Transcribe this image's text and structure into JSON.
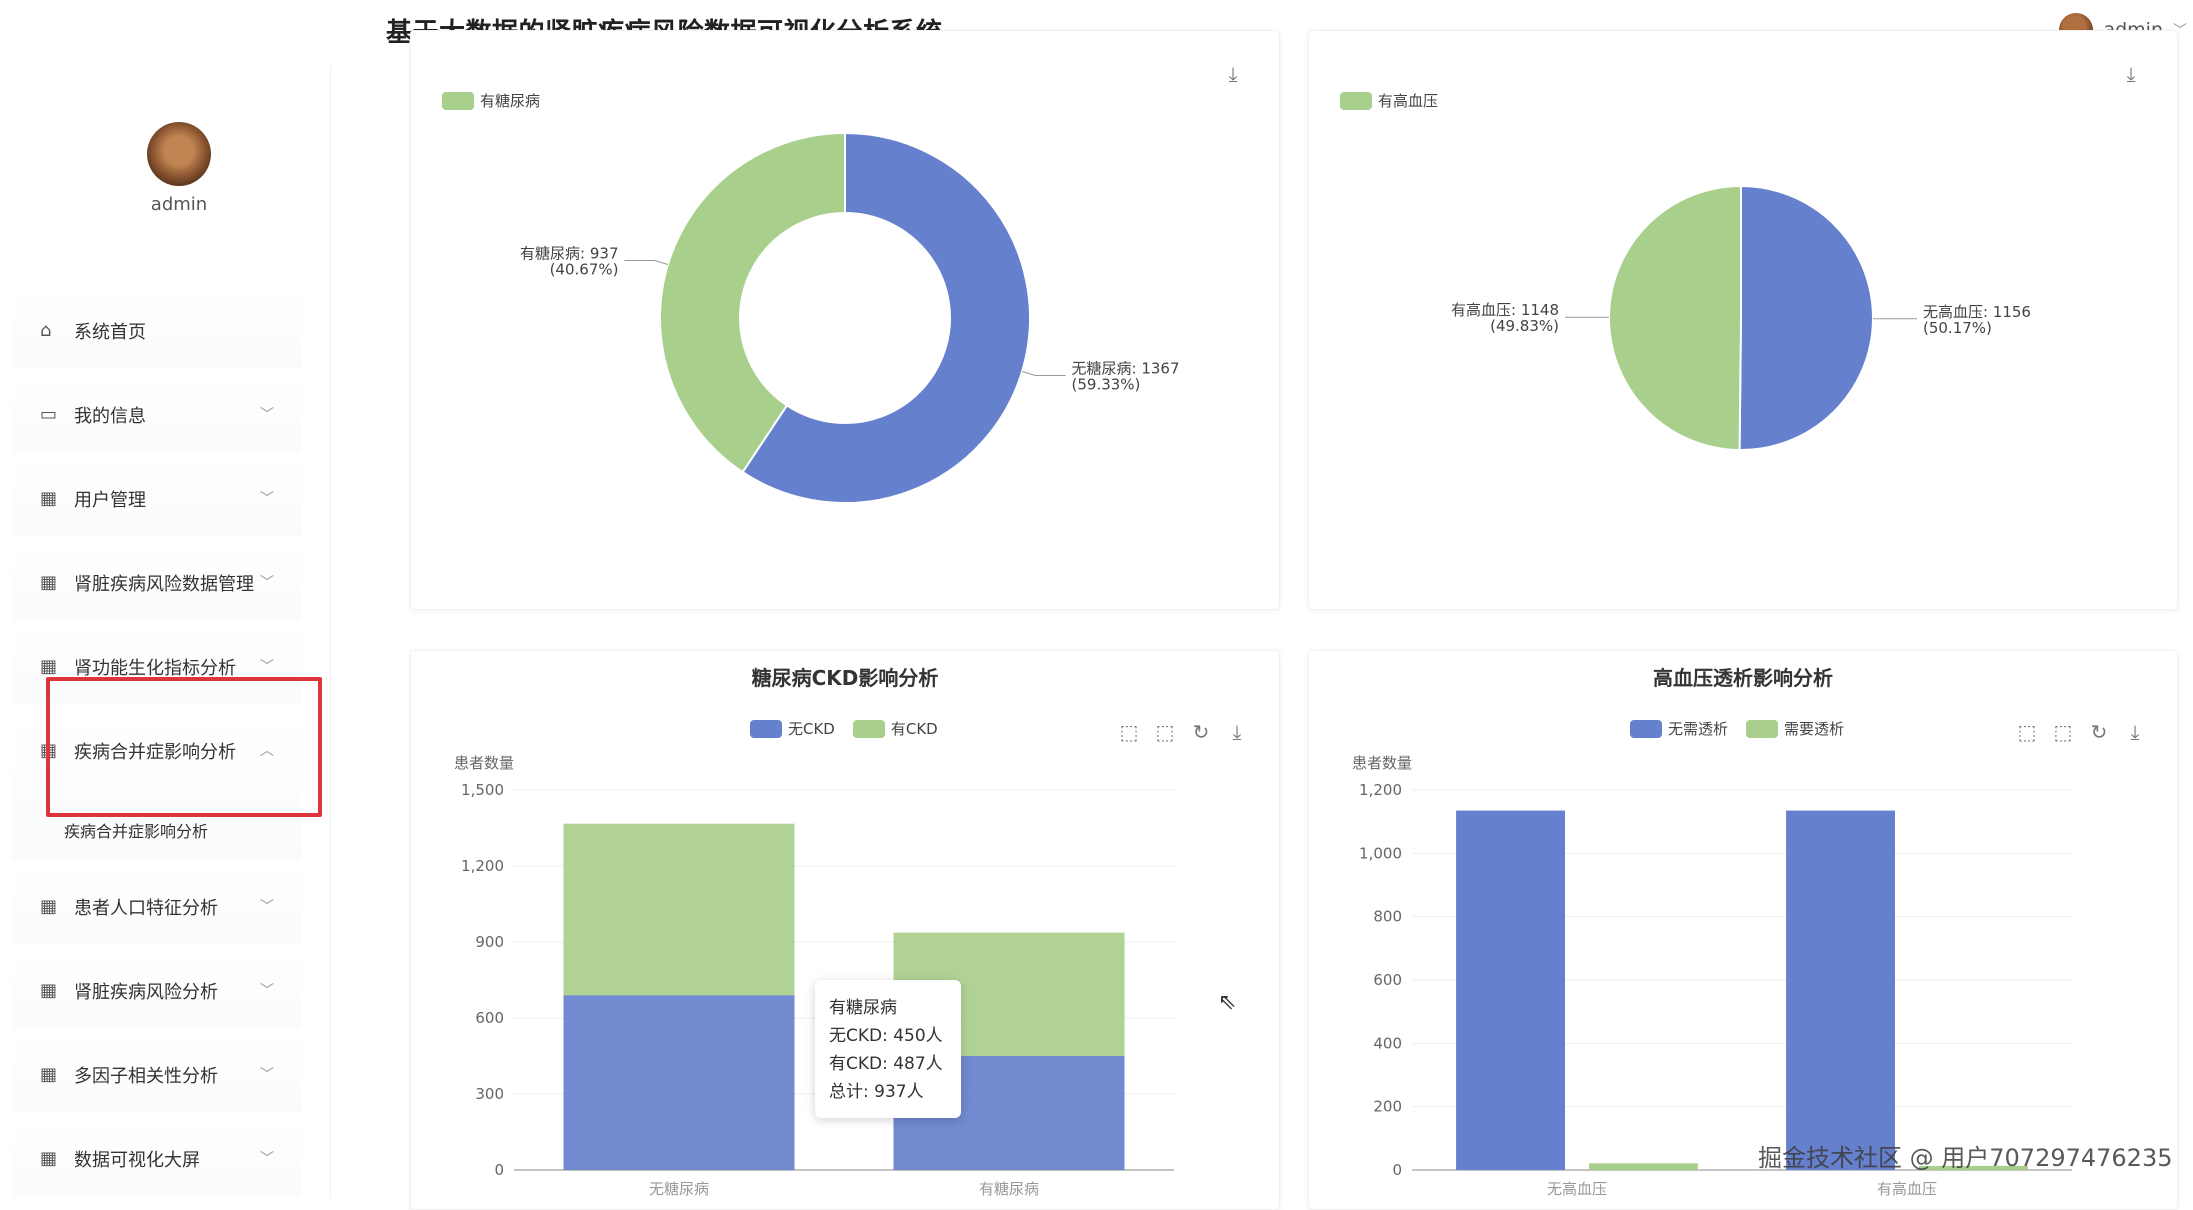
{
  "header": {
    "title": "基于大数据的肾脏疾病风险数据可视化分析系统",
    "username": "admin"
  },
  "sidebar": {
    "profile_name": "admin",
    "items": [
      {
        "label": "系统首页",
        "icon": "home-icon",
        "has_caret": false
      },
      {
        "label": "我的信息",
        "icon": "card-icon",
        "has_caret": true
      },
      {
        "label": "用户管理",
        "icon": "grid-icon",
        "has_caret": true
      },
      {
        "label": "肾脏疾病风险数据管理",
        "icon": "grid-icon",
        "has_caret": true
      },
      {
        "label": "肾功能生化指标分析",
        "icon": "grid-icon",
        "has_caret": true
      },
      {
        "label": "疾病合并症影响分析",
        "icon": "grid-icon",
        "has_caret": true,
        "open": true,
        "sub": "疾病合并症影响分析"
      },
      {
        "label": "患者人口特征分析",
        "icon": "grid-icon",
        "has_caret": true
      },
      {
        "label": "肾脏疾病风险分析",
        "icon": "grid-icon",
        "has_caret": true
      },
      {
        "label": "多因子相关性分析",
        "icon": "grid-icon",
        "has_caret": true
      },
      {
        "label": "数据可视化大屏",
        "icon": "grid-icon",
        "has_caret": true
      }
    ]
  },
  "colors": {
    "blue": "#6580cc",
    "green": "#a9cf8c",
    "highlight": "#e0343c"
  },
  "chart_data": [
    {
      "type": "pie",
      "variant": "donut",
      "legend": [
        "无糖尿病",
        "有糖尿病"
      ],
      "slices": [
        {
          "name": "无糖尿病",
          "value": 1367,
          "percent": "59.33%",
          "label": "无糖尿病: 1367",
          "label_pct": "(59.33%)"
        },
        {
          "name": "有糖尿病",
          "value": 937,
          "percent": "40.67%",
          "label": "有糖尿病: 937",
          "label_pct": "(40.67%)"
        }
      ]
    },
    {
      "type": "pie",
      "legend": [
        "无高血压",
        "有高血压"
      ],
      "slices": [
        {
          "name": "无高血压",
          "value": 1156,
          "percent": "50.17%",
          "label": "无高血压: 1156",
          "label_pct": "(50.17%)"
        },
        {
          "name": "有高血压",
          "value": 1148,
          "percent": "49.83%",
          "label": "有高血压: 1148",
          "label_pct": "(49.83%)"
        }
      ]
    },
    {
      "type": "bar",
      "stacked": true,
      "title": "糖尿病CKD影响分析",
      "ylabel": "患者数量",
      "categories": [
        "无糖尿病",
        "有糖尿病"
      ],
      "series": [
        {
          "name": "无CKD",
          "values": [
            690,
            450
          ]
        },
        {
          "name": "有CKD",
          "values": [
            677,
            487
          ]
        }
      ],
      "ylim": [
        0,
        1500
      ],
      "yticks": [
        "0",
        "300",
        "600",
        "900",
        "1,200",
        "1,500"
      ],
      "tooltip": {
        "title": "有糖尿病",
        "lines": [
          "无CKD: 450人",
          "有CKD: 487人",
          "总计: 937人"
        ]
      }
    },
    {
      "type": "bar",
      "title": "高血压透析影响分析",
      "ylabel": "患者数量",
      "categories": [
        "无高血压",
        "有高血压"
      ],
      "series": [
        {
          "name": "无需透析",
          "values": [
            1135,
            1135
          ]
        },
        {
          "name": "需要透析",
          "values": [
            21,
            13
          ]
        }
      ],
      "ylim": [
        0,
        1200
      ],
      "yticks": [
        "0",
        "200",
        "400",
        "600",
        "800",
        "1,000",
        "1,200"
      ]
    }
  ],
  "watermark": "掘金技术社区 @ 用户707297476235"
}
